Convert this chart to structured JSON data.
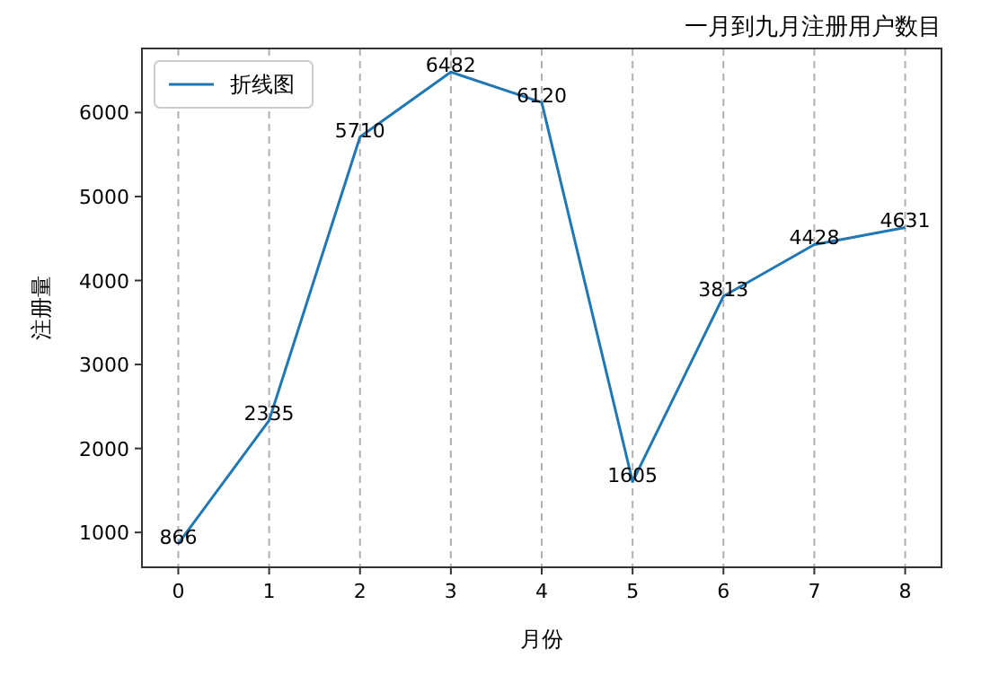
{
  "chart_data": {
    "type": "line",
    "title": "一月到九月注册用户数目",
    "xlabel": "月份",
    "ylabel": "注册量",
    "x": [
      0,
      1,
      2,
      3,
      4,
      5,
      6,
      7,
      8
    ],
    "series": [
      {
        "name": "折线图",
        "color": "#1f77b4",
        "values": [
          866,
          2335,
          5710,
          6482,
          6120,
          1605,
          3813,
          4428,
          4631
        ]
      }
    ],
    "xlim": [
      -0.4,
      8.4
    ],
    "ylim": [
      585,
      6763
    ],
    "xticks": [
      0,
      1,
      2,
      3,
      4,
      5,
      6,
      7,
      8
    ],
    "yticks": [
      1000,
      2000,
      3000,
      4000,
      5000,
      6000
    ],
    "grid": "x",
    "legend": "top left",
    "data_labels": true,
    "marker": "none",
    "line_style": "solid"
  }
}
